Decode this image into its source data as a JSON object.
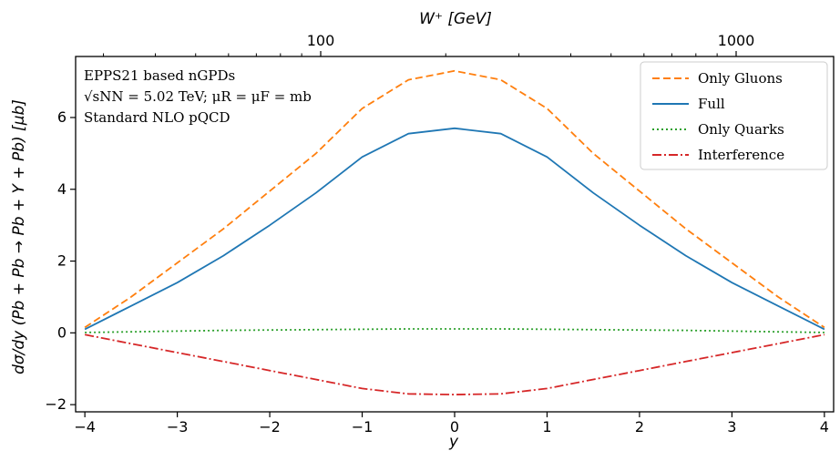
{
  "chart_data": {
    "type": "line",
    "xlabel": "y",
    "ylabel": "dσ/dy (Pb + Pb → Pb + Υ + Pb) [μb]",
    "top_xlabel": "W⁺ [GeV]",
    "xlim": [
      -4.1,
      4.1
    ],
    "ylim": [
      -2.2,
      7.7
    ],
    "x_ticks": [
      "−4",
      "−3",
      "−2",
      "−1",
      "0",
      "1",
      "2",
      "3",
      "4"
    ],
    "y_ticks": [
      "−2",
      "0",
      "2",
      "4",
      "6"
    ],
    "top_ticks": [
      "100",
      "1000"
    ],
    "top_axis_scale": "log",
    "annotations": [
      "EPPS21 based nGPDs",
      "√sNN = 5.02 TeV; μR = μF = mb",
      "Standard NLO pQCD"
    ],
    "legend_position": "top-right",
    "grid": false,
    "x": [
      -4.0,
      -3.5,
      -3.0,
      -2.5,
      -2.0,
      -1.5,
      -1.0,
      -0.5,
      0.0,
      0.5,
      1.0,
      1.5,
      2.0,
      2.5,
      3.0,
      3.5,
      4.0
    ],
    "series": [
      {
        "name": "Only Gluons",
        "color": "#ff7f0e",
        "dash": "dashed",
        "values": [
          0.15,
          1.0,
          1.95,
          2.9,
          3.95,
          5.0,
          6.25,
          7.05,
          7.3,
          7.05,
          6.25,
          5.0,
          3.95,
          2.9,
          1.95,
          1.0,
          0.15
        ]
      },
      {
        "name": "Full",
        "color": "#1f77b4",
        "dash": "solid",
        "values": [
          0.1,
          0.75,
          1.4,
          2.15,
          3.0,
          3.9,
          4.9,
          5.55,
          5.7,
          5.55,
          4.9,
          3.9,
          3.0,
          2.15,
          1.4,
          0.75,
          0.1
        ]
      },
      {
        "name": "Only Quarks",
        "color": "#2ca02c",
        "dash": "dotted",
        "values": [
          0.01,
          0.03,
          0.05,
          0.07,
          0.08,
          0.09,
          0.1,
          0.11,
          0.11,
          0.11,
          0.1,
          0.09,
          0.08,
          0.07,
          0.05,
          0.03,
          0.01
        ]
      },
      {
        "name": "Interference",
        "color": "#d62728",
        "dash": "dashdot",
        "values": [
          -0.05,
          -0.3,
          -0.55,
          -0.8,
          -1.05,
          -1.3,
          -1.55,
          -1.7,
          -1.72,
          -1.7,
          -1.55,
          -1.3,
          -1.05,
          -0.8,
          -0.55,
          -0.3,
          -0.05
        ]
      }
    ]
  }
}
